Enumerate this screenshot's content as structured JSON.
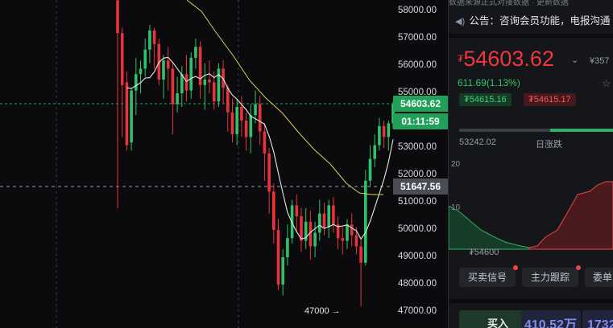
{
  "chart": {
    "y_axis_labels": [
      "58000.00",
      "57000.00",
      "56000.00",
      "55000.00",
      "54000.00",
      "53000.00",
      "52000.00",
      "51000.00",
      "50000.00",
      "49000.00",
      "48000.00",
      "47000.00"
    ],
    "y_axis_values": [
      58000,
      57000,
      56000,
      55000,
      54000,
      53000,
      52000,
      51000,
      50000,
      49000,
      48000,
      47000
    ],
    "current_price_tag": "54603.62",
    "countdown_tag": "01:11:59",
    "crosshair_price_tag": "51647.56",
    "low_annotation": "47000 →",
    "colors": {
      "up": "#2fc26b",
      "down": "#e8333a",
      "ma_short": "#e8e8e8",
      "ma_long": "#d6cf5a",
      "price_line": "#21a05a"
    }
  },
  "panel": {
    "top_strip": "数据来源正式对接数据 · 更新数据",
    "notice_prefix": "公告：",
    "notice_text": "咨询会员功能，电报沟通",
    "price_currency": "₮",
    "price": "54603.62",
    "side_value": "¥357",
    "change": "611.69(1.13%)",
    "bid_badge": "₮54615.16",
    "ask_badge": "₮54615.17",
    "range_low": "53242.02",
    "range_label": "日涨跌",
    "depth_y_top": "20",
    "depth_y_mid": "10",
    "depth_x_label": "₮54600",
    "tabs": [
      "买卖信号",
      "主力跟踪",
      "委单"
    ],
    "buy_label": "买入",
    "stat1": "410.52万",
    "stat2": "1732"
  }
}
